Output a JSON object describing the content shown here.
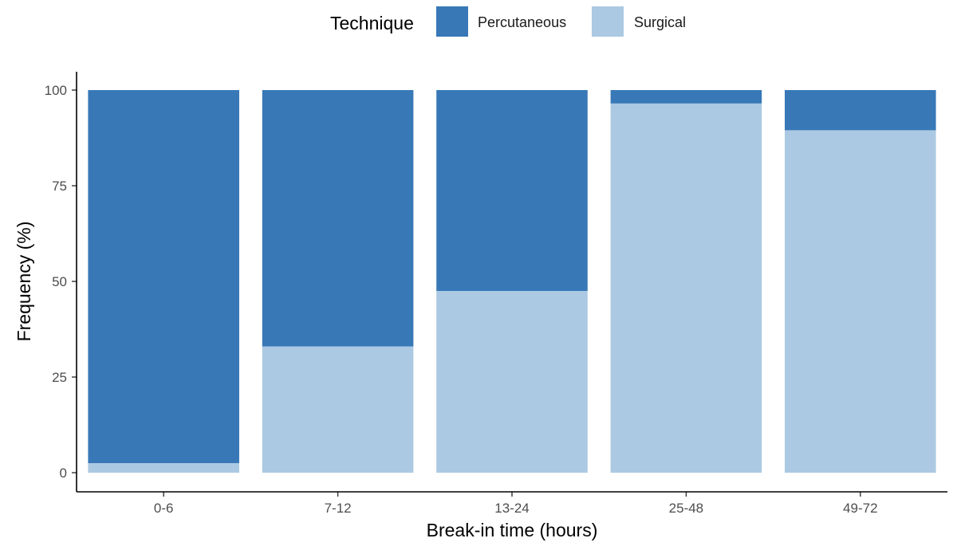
{
  "chart_data": {
    "type": "bar",
    "stacked": true,
    "categories": [
      "0-6",
      "7-12",
      "13-24",
      "25-48",
      "49-72"
    ],
    "series": [
      {
        "name": "Surgical",
        "color": "#abc9e2",
        "values": [
          2.5,
          33,
          47.5,
          96.5,
          89.5
        ]
      },
      {
        "name": "Percutaneous",
        "color": "#3878b7",
        "values": [
          97.5,
          67,
          52.5,
          3.5,
          10.5
        ]
      }
    ],
    "xlabel": "Break-in time (hours)",
    "ylabel": "Frequency (%)",
    "ylim": [
      0,
      100
    ],
    "yticks": [
      0,
      25,
      50,
      75,
      100
    ],
    "grid": false,
    "legend": {
      "title": "Technique",
      "placement": "top",
      "items": [
        "Percutaneous",
        "Surgical"
      ]
    }
  }
}
